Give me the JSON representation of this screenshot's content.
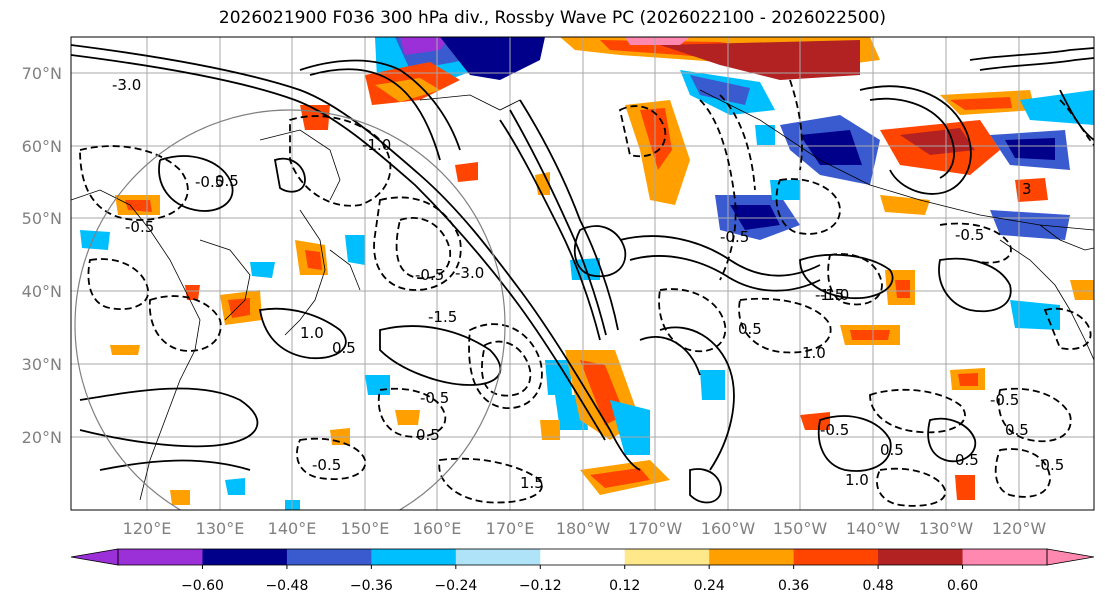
{
  "title": "2026021900 F036 300 hPa div., Rossby Wave PC (2026022100 - 2026022500)",
  "latitude_labels": [
    "70°N",
    "60°N",
    "50°N",
    "40°N",
    "30°N",
    "20°N"
  ],
  "longitude_labels": [
    "120°E",
    "130°E",
    "140°E",
    "150°E",
    "160°E",
    "170°E",
    "180°W",
    "170°W",
    "160°W",
    "150°W",
    "140°W",
    "130°W",
    "120°W"
  ],
  "colorbar": {
    "colors": [
      "#9b30d9",
      "#00008b",
      "#3a5bd0",
      "#00bfff",
      "#aee3f8",
      "#ffffff",
      "#ffe88a",
      "#ffa000",
      "#ff4500",
      "#b22222",
      "#ff88b0"
    ],
    "under_color": "#9b30d9",
    "over_color": "#ff88b0",
    "tick_labels": [
      "−0.60",
      "−0.48",
      "−0.36",
      "−0.24",
      "−0.12",
      "0.12",
      "0.24",
      "0.36",
      "0.48",
      "0.60"
    ]
  },
  "contour_labels": [
    "-3.0",
    "-1.0",
    "-0.5",
    "-0.5",
    "-1.5",
    "-3.0",
    "-0.5",
    "1.0",
    "0.5",
    "-0.5",
    "0.5",
    "-0.5",
    "-1.0",
    "0.5",
    "1.0",
    "-0.5",
    "0.5",
    "3",
    "-1.5",
    "1.0",
    "-0.5",
    "-0.5",
    "0.5",
    "0.5",
    "-0.5",
    "1.5",
    "-0.5",
    "0.5"
  ]
}
